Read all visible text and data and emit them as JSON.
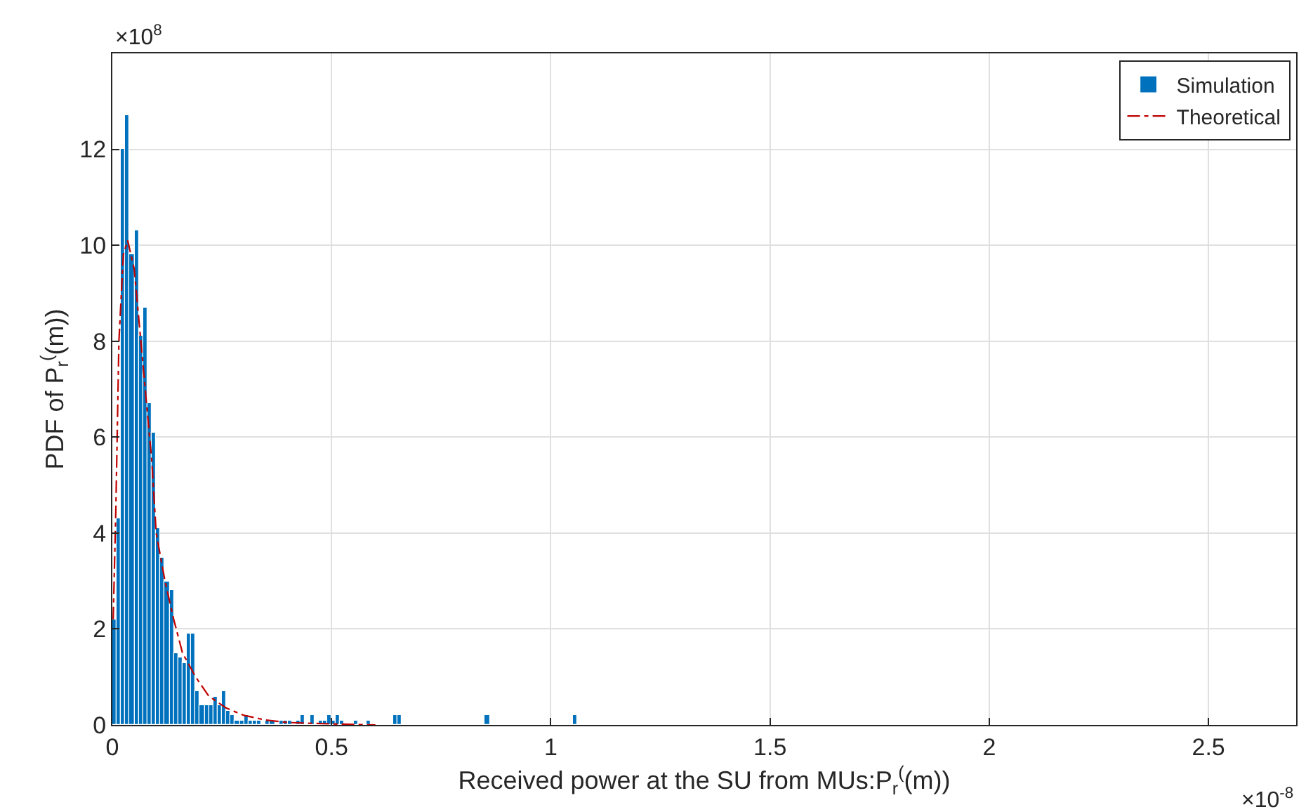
{
  "chart_data": {
    "type": "histogram",
    "xlabel": "Received power at the SU from MUs:P$_{r}$$^{(}$(m))",
    "ylabel": "PDF of P$_{r}$$^{(}$(m))",
    "annotations": [
      "×10$^{8}$",
      "×10$^{-8}$"
    ],
    "series": [
      {
        "name": "Simulation",
        "type": "histogram",
        "color": "#0072bd",
        "bins": [
          0,
          0.01,
          0.02,
          0.03,
          0.04,
          0.05,
          0.06,
          0.07,
          0.08,
          0.09,
          0.1,
          0.11,
          0.12,
          0.13,
          0.14,
          0.15,
          0.16,
          0.17,
          0.18,
          0.19,
          0.2,
          0.21,
          0.22,
          0.23,
          0.24,
          0.25,
          0.26,
          0.27,
          0.28,
          0.29,
          0.3,
          0.31,
          0.32,
          0.33,
          0.34,
          0.35,
          0.36,
          0.37,
          0.38,
          0.39,
          0.4,
          0.41,
          0.42,
          0.43,
          0.44,
          0.45,
          0.46,
          0.47,
          0.48,
          0.49,
          0.5,
          0.51,
          0.52,
          0.53,
          0.54,
          0.55,
          0.56,
          0.57,
          0.58,
          0.59,
          0.6,
          0.61,
          0.62,
          0.63,
          0.64,
          0.65,
          0.66,
          0.67,
          0.68,
          0.69,
          0.7,
          0.71,
          0.72,
          0.73,
          0.74,
          0.75,
          0.76,
          0.77,
          0.78,
          0.79,
          0.8,
          0.81,
          0.82,
          0.83,
          0.84,
          0.85,
          0.86,
          0.87,
          0.88,
          0.89,
          0.9,
          0.91,
          0.92,
          0.93,
          0.94,
          0.95,
          0.96,
          0.97,
          0.98,
          0.99,
          1.0,
          1.01,
          1.02,
          1.03,
          1.04,
          1.05,
          1.06,
          1.07,
          1.08,
          1.09,
          1.1
        ],
        "values": [
          2.2,
          4.3,
          12.0,
          12.7,
          9.8,
          10.3,
          8.1,
          8.7,
          6.7,
          6.1,
          4.1,
          3.5,
          3.0,
          2.8,
          1.5,
          1.4,
          1.3,
          1.9,
          1.9,
          0.7,
          0.4,
          0.4,
          0.4,
          0.6,
          0.4,
          0.7,
          0.3,
          0.2,
          0.1,
          0.1,
          0.2,
          0.1,
          0.1,
          0.1,
          0,
          0.1,
          0.1,
          0,
          0.1,
          0.1,
          0.1,
          0,
          0.1,
          0.2,
          0,
          0.2,
          0,
          0.1,
          0.1,
          0.2,
          0.1,
          0.2,
          0.1,
          0,
          0,
          0.1,
          0,
          0,
          0.1,
          0,
          0,
          0,
          0,
          0,
          0.2,
          0.2,
          0,
          0,
          0,
          0,
          0,
          0,
          0,
          0,
          0,
          0,
          0,
          0,
          0,
          0,
          0,
          0,
          0,
          0,
          0,
          0.2,
          0,
          0,
          0,
          0,
          0,
          0,
          0,
          0,
          0,
          0,
          0,
          0,
          0,
          0,
          0,
          0,
          0,
          0,
          0,
          0.2,
          0,
          0,
          0,
          0
        ]
      },
      {
        "name": "Theoretical",
        "type": "line",
        "color": "#c00000",
        "line_style": "dashdot",
        "x": [
          0.002,
          0.008,
          0.015,
          0.025,
          0.035,
          0.05,
          0.06,
          0.075,
          0.09,
          0.1,
          0.12,
          0.14,
          0.16,
          0.19,
          0.22,
          0.26,
          0.3,
          0.35,
          0.4,
          0.5,
          0.6
        ],
        "values": [
          2.2,
          4.5,
          8.0,
          9.8,
          10.1,
          9.5,
          8.5,
          7.0,
          5.5,
          4.0,
          3.0,
          2.2,
          1.5,
          1.0,
          0.6,
          0.35,
          0.2,
          0.1,
          0.05,
          0.02,
          0
        ]
      }
    ],
    "xlim": [
      0,
      2.7
    ],
    "xticks": [
      0,
      0.5,
      1,
      1.5,
      2,
      2.5
    ],
    "ylim": [
      0,
      14
    ],
    "yticks": [
      0,
      2,
      4,
      6,
      8,
      10,
      12
    ],
    "grid": true,
    "legend": "top right"
  }
}
